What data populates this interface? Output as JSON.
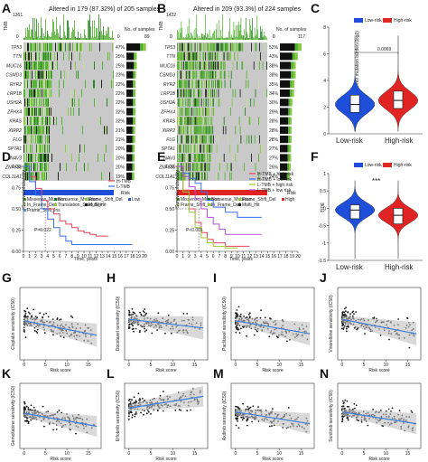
{
  "chart_data": [
    {
      "panel": "A",
      "type": "heatmap",
      "title": "Altered in 179 (87.32%) of 205 samples",
      "ylabel": "TMB",
      "tmb_max": "1361",
      "tmb_min": "0",
      "right_axis_title": "No. of samples",
      "right_axis_ticks": [
        "0",
        "89"
      ],
      "genes": [
        "TP53",
        "TTN",
        "MUC16",
        "CSMD3",
        "RYR2",
        "LRP1B",
        "USH2A",
        "ZFHX4",
        "KRAS",
        "XIRP2",
        "FLG",
        "SPTA1",
        "NAV3",
        "ZNF536",
        "COL11A1"
      ],
      "percents": [
        "47%",
        "25%",
        "25%",
        "23%",
        "22%",
        "22%",
        "22%",
        "22%",
        "22%",
        "21%",
        "21%",
        "20%",
        "20%",
        "20%",
        "19%"
      ],
      "bar_fraction": [
        0.47,
        0.25,
        0.25,
        0.23,
        0.22,
        0.22,
        0.22,
        0.22,
        0.22,
        0.21,
        0.21,
        0.2,
        0.2,
        0.2,
        0.19
      ],
      "risk_label": "Risk",
      "risk_legend": [
        "Low"
      ],
      "mutation_legend": [
        "Missense_Mutation",
        "Nonsense_Mutation",
        "Frame_Shift_Del",
        "In_Frame_Del",
        "Translation_Start_Site",
        "Multi_Hit",
        "Frame_Shift_Ins"
      ]
    },
    {
      "panel": "B",
      "type": "heatmap",
      "title": "Altered in 209 (93.3%) of 224 samples",
      "ylabel": "TMB",
      "tmb_max": "1422",
      "tmb_min": "0",
      "right_axis_title": "No. of samples",
      "right_axis_ticks": [
        "0",
        "117"
      ],
      "genes": [
        "TP53",
        "TTN",
        "MUC16",
        "CSMD3",
        "RYR2",
        "LRP1B",
        "USH2A",
        "ZFHX4",
        "KRAS",
        "XIRP2",
        "FLG",
        "SPTA1",
        "NAV3",
        "ZNF536",
        "COL11A1"
      ],
      "percents": [
        "52%",
        "43%",
        "38%",
        "38%",
        "35%",
        "34%",
        "30%",
        "29%",
        "28%",
        "28%",
        "28%",
        "27%",
        "27%",
        "26%",
        "24%"
      ],
      "bar_fraction": [
        0.52,
        0.43,
        0.38,
        0.38,
        0.35,
        0.34,
        0.3,
        0.29,
        0.28,
        0.28,
        0.28,
        0.27,
        0.27,
        0.26,
        0.24
      ],
      "risk_label": "Risk",
      "risk_legend": [
        "High"
      ],
      "mutation_legend": [
        "Missense_Mutation",
        "Nonsense_Mutation",
        "Frame_Shift_Del",
        "Frame_Shift_Ins",
        "In_Frame_Del",
        "Multi_Hit"
      ]
    },
    {
      "panel": "C",
      "type": "violin",
      "legend": [
        "Low-risk",
        "High-risk"
      ],
      "categories": [
        "Low-risk",
        "High-risk"
      ],
      "ylabel": "Tumor mutation burden (log2)",
      "yticks": [
        0,
        2,
        4,
        6,
        8
      ],
      "ylim": [
        0,
        8
      ],
      "p_value": "0.0069",
      "box": [
        {
          "q1": 1.6,
          "median": 2.2,
          "q3": 2.9
        },
        {
          "q1": 1.9,
          "median": 2.5,
          "q3": 3.2
        }
      ]
    },
    {
      "panel": "D",
      "type": "line",
      "ylabel": "Survival probability",
      "xlabel": "Time, years",
      "yticks": [
        "0.00",
        "0.25",
        "0.50",
        "0.75",
        "1.00"
      ],
      "xticks": [
        "0",
        "1",
        "2",
        "3",
        "4",
        "5",
        "6",
        "7",
        "8",
        "9",
        "10",
        "11",
        "12",
        "13",
        "14",
        "15",
        "16",
        "17",
        "18",
        "19",
        "20"
      ],
      "xlim": [
        0,
        20
      ],
      "ylim": [
        0,
        1
      ],
      "p_text": "P=0.022",
      "series": [
        {
          "name": "H-TMB",
          "x": [
            0,
            1,
            2,
            3,
            4,
            5,
            6,
            7,
            8,
            9,
            10,
            11,
            12,
            13,
            14
          ],
          "y": [
            1,
            0.88,
            0.74,
            0.6,
            0.5,
            0.44,
            0.36,
            0.32,
            0.28,
            0.24,
            0.22,
            0.2,
            0.18,
            0.18,
            0.18
          ]
        },
        {
          "name": "L-TMB",
          "x": [
            0,
            1,
            2,
            3,
            4,
            5,
            6,
            7,
            8,
            9,
            10,
            11,
            12,
            14,
            16,
            18
          ],
          "y": [
            1,
            0.82,
            0.66,
            0.5,
            0.38,
            0.28,
            0.18,
            0.12,
            0.08,
            0.08,
            0.08,
            0.08,
            0.08,
            0.08,
            0.08,
            0.08
          ]
        }
      ]
    },
    {
      "panel": "E",
      "type": "line",
      "ylabel": "Survival probability",
      "xlabel": "Time, years",
      "yticks": [
        "0.00",
        "0.25",
        "0.50",
        "0.75",
        "1.00"
      ],
      "xticks": [
        "0",
        "1",
        "2",
        "3",
        "4",
        "5",
        "6",
        "7",
        "8",
        "9",
        "10",
        "11",
        "12",
        "13",
        "14",
        "15",
        "16",
        "17",
        "18",
        "19",
        "20"
      ],
      "xlim": [
        0,
        20
      ],
      "ylim": [
        0,
        1
      ],
      "p_text": "P<0.001",
      "series": [
        {
          "name": "H-TMB + high risk",
          "x": [
            0,
            1,
            2,
            3,
            4,
            5,
            6,
            8,
            10,
            12
          ],
          "y": [
            1,
            0.72,
            0.5,
            0.34,
            0.22,
            0.14,
            0.1,
            0.06,
            0.06,
            0.06
          ]
        },
        {
          "name": "H-TMB + low risk",
          "x": [
            0,
            1,
            2,
            3,
            4,
            5,
            6,
            8,
            10,
            12,
            14
          ],
          "y": [
            1,
            0.92,
            0.86,
            0.8,
            0.7,
            0.6,
            0.52,
            0.46,
            0.4,
            0.4,
            0.4
          ]
        },
        {
          "name": "L-TMB + high risk",
          "x": [
            0,
            1,
            2,
            3,
            4,
            5,
            6,
            8,
            10
          ],
          "y": [
            1,
            0.7,
            0.46,
            0.28,
            0.16,
            0.1,
            0.06,
            0.04,
            0.04
          ]
        },
        {
          "name": "L-TMB + low risk",
          "x": [
            0,
            1,
            2,
            3,
            4,
            5,
            6,
            7,
            8,
            10,
            12,
            14
          ],
          "y": [
            1,
            0.88,
            0.76,
            0.62,
            0.5,
            0.4,
            0.32,
            0.26,
            0.2,
            0.2,
            0.2,
            0.2
          ]
        }
      ]
    },
    {
      "panel": "F",
      "type": "violin",
      "legend": [
        "Low-risk",
        "High-risk"
      ],
      "categories": [
        "Low-risk",
        "High-risk"
      ],
      "ylabel": "TIDE",
      "yticks": [
        -1.5,
        -1.0,
        -0.5,
        0.0,
        0.5,
        1.0
      ],
      "ylim": [
        -1.5,
        1.0
      ],
      "p_value": "***",
      "box": [
        {
          "q1": -0.3,
          "median": -0.05,
          "q3": 0.1
        },
        {
          "q1": -0.45,
          "median": -0.2,
          "q3": 0.0
        }
      ]
    },
    {
      "panel": "G",
      "type": "scatter",
      "xlabel": "Risk score",
      "ylabel": "Cisplatin sensitivity (IC50)",
      "xticks": [
        0,
        5,
        10,
        15
      ],
      "xlim": [
        -1,
        18
      ],
      "ylim": [
        -2,
        8
      ],
      "trend": [
        [
          0,
          3.4
        ],
        [
          17,
          1.4
        ]
      ]
    },
    {
      "panel": "H",
      "type": "scatter",
      "xlabel": "Risk score",
      "ylabel": "Docetaxel sensitivity (IC50)",
      "xticks": [
        0,
        5,
        10,
        15
      ],
      "xlim": [
        -1,
        18
      ],
      "ylim": [
        -2,
        8
      ],
      "trend": [
        [
          0,
          3.6
        ],
        [
          17,
          2.4
        ]
      ]
    },
    {
      "panel": "I",
      "type": "scatter",
      "xlabel": "Risk score",
      "ylabel": "Paclitaxel sensitivity (IC50)",
      "xticks": [
        0,
        5,
        10,
        15
      ],
      "xlim": [
        -1,
        18
      ],
      "ylim": [
        -2,
        8
      ],
      "trend": [
        [
          0,
          3.4
        ],
        [
          17,
          1.6
        ]
      ]
    },
    {
      "panel": "J",
      "type": "scatter",
      "xlabel": "Risk score",
      "ylabel": "Vinorelbine sensitivity (IC50)",
      "xticks": [
        0,
        5,
        10,
        15
      ],
      "xlim": [
        -1,
        18
      ],
      "ylim": [
        -2,
        8
      ],
      "trend": [
        [
          0,
          3.6
        ],
        [
          17,
          1.6
        ]
      ]
    },
    {
      "panel": "K",
      "type": "scatter",
      "xlabel": "Risk score",
      "ylabel": "Gemcitabine sensitivity (IC50)",
      "xticks": [
        0,
        5,
        10,
        15
      ],
      "xlim": [
        -1,
        18
      ],
      "ylim": [
        -2,
        8
      ],
      "trend": [
        [
          0,
          3.4
        ],
        [
          17,
          1.4
        ]
      ]
    },
    {
      "panel": "L",
      "type": "scatter",
      "xlabel": "Risk score",
      "ylabel": "Erlotinib sensitivity (IC50)",
      "xticks": [
        0,
        5,
        10,
        15
      ],
      "xlim": [
        -1,
        18
      ],
      "ylim": [
        -2,
        8
      ],
      "trend": [
        [
          0,
          4.2
        ],
        [
          17,
          6.0
        ]
      ]
    },
    {
      "panel": "M",
      "type": "scatter",
      "xlabel": "Risk score",
      "ylabel": "Axitinib sensitivity (IC50)",
      "xticks": [
        0,
        5,
        10,
        15
      ],
      "xlim": [
        -1,
        18
      ],
      "ylim": [
        -2,
        8
      ],
      "trend": [
        [
          0,
          3.6
        ],
        [
          17,
          1.8
        ]
      ]
    },
    {
      "panel": "N",
      "type": "scatter",
      "xlabel": "Risk score",
      "ylabel": "Sunitinib sensitivity (IC50)",
      "xticks": [
        0,
        5,
        10,
        15
      ],
      "xlim": [
        -1,
        18
      ],
      "ylim": [
        -2,
        8
      ],
      "trend": [
        [
          0,
          3.6
        ],
        [
          17,
          1.8
        ]
      ]
    }
  ],
  "colors": {
    "missense": "#4daf2a",
    "nonsense": "#1b7a1b",
    "frameshift_del": "#87c73f",
    "frameshift_ins": "#c4e39a",
    "inframe": "#9acd32",
    "multi": "#111111",
    "tss": "#5b9bd5",
    "low": "#1f4fd8",
    "high": "#e02424",
    "bg_cell": "#c9c9c9",
    "h_tmb": "#e8445a",
    "l_tmb": "#3a6ff0",
    "e_h_high": "#e8445a",
    "e_h_low": "#3a6ff0",
    "e_l_high": "#9acd32",
    "e_l_low": "#b64fd8",
    "scatter_pt": "#111111",
    "trend": "#3d7fd9",
    "ci": "#bfbfbf"
  }
}
